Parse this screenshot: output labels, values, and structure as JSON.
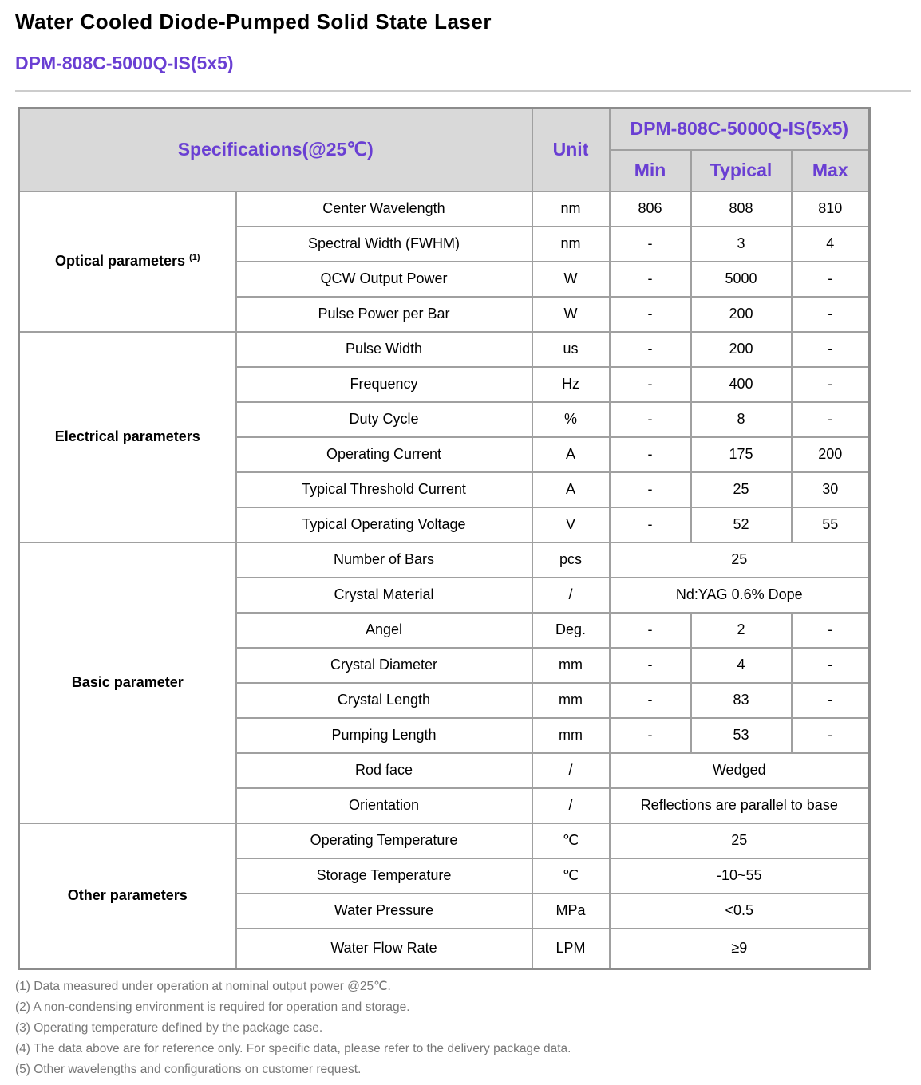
{
  "title": "Water Cooled Diode-Pumped Solid State Laser",
  "model": "DPM-808C-5000Q-IS(5x5)",
  "table": {
    "header": {
      "spec": "Specifications(@25℃)",
      "unit": "Unit",
      "model": "DPM-808C-5000Q-IS(5x5)",
      "min": "Min",
      "typical": "Typical",
      "max": "Max"
    },
    "groups": [
      {
        "name": "Optical parameters",
        "sup": "(1)",
        "rows": [
          {
            "param": "Center Wavelength",
            "unit": "nm",
            "min": "806",
            "typ": "808",
            "max": "810"
          },
          {
            "param": "Spectral Width (FWHM)",
            "unit": "nm",
            "min": "-",
            "typ": "3",
            "max": "4"
          },
          {
            "param": "QCW Output Power",
            "unit": "W",
            "min": "-",
            "typ": "5000",
            "max": "-"
          },
          {
            "param": "Pulse Power per Bar",
            "unit": "W",
            "min": "-",
            "typ": "200",
            "max": "-"
          }
        ]
      },
      {
        "name": "Electrical parameters",
        "rows": [
          {
            "param": "Pulse Width",
            "unit": "us",
            "min": "-",
            "typ": "200",
            "max": "-"
          },
          {
            "param": "Frequency",
            "unit": "Hz",
            "min": "-",
            "typ": "400",
            "max": "-"
          },
          {
            "param": "Duty Cycle",
            "unit": "%",
            "min": "-",
            "typ": "8",
            "max": "-"
          },
          {
            "param": "Operating Current",
            "unit": "A",
            "min": "-",
            "typ": "175",
            "max": "200"
          },
          {
            "param": "Typical Threshold Current",
            "unit": "A",
            "min": "-",
            "typ": "25",
            "max": "30"
          },
          {
            "param": "Typical Operating Voltage",
            "unit": "V",
            "min": "-",
            "typ": "52",
            "max": "55"
          }
        ]
      },
      {
        "name": "Basic parameter",
        "rows": [
          {
            "param": "Number of Bars",
            "unit": "pcs",
            "value": "25"
          },
          {
            "param": "Crystal Material",
            "unit": "/",
            "value": "Nd:YAG 0.6% Dope"
          },
          {
            "param": "Angel",
            "unit": "Deg.",
            "min": "-",
            "typ": "2",
            "max": "-"
          },
          {
            "param": "Crystal Diameter",
            "unit": "mm",
            "min": "-",
            "typ": "4",
            "max": "-"
          },
          {
            "param": "Crystal Length",
            "unit": "mm",
            "min": "-",
            "typ": "83",
            "max": "-"
          },
          {
            "param": "Pumping Length",
            "unit": "mm",
            "min": "-",
            "typ": "53",
            "max": "-"
          },
          {
            "param": "Rod face",
            "unit": "/",
            "value": "Wedged"
          },
          {
            "param": "Orientation",
            "unit": "/",
            "value": "Reflections are parallel to base"
          }
        ]
      },
      {
        "name": "Other parameters",
        "rows": [
          {
            "param": "Operating Temperature",
            "unit": "℃",
            "value": "25"
          },
          {
            "param": "Storage Temperature",
            "unit": "℃",
            "value": "-10~55"
          },
          {
            "param": "Water Pressure",
            "unit": "MPa",
            "value": "<0.5"
          },
          {
            "param": "Water Flow Rate",
            "unit": "LPM",
            "value": "≥9"
          }
        ]
      }
    ]
  },
  "notes": [
    "(1) Data measured under operation at nominal output power @25℃.",
    "(2) A non-condensing environment is required for operation and storage.",
    "(3) Operating temperature defined by the package case.",
    "(4) The data above are for reference only. For specific data, please refer to the delivery package data.",
    "(5) Other wavelengths and configurations on customer request."
  ]
}
